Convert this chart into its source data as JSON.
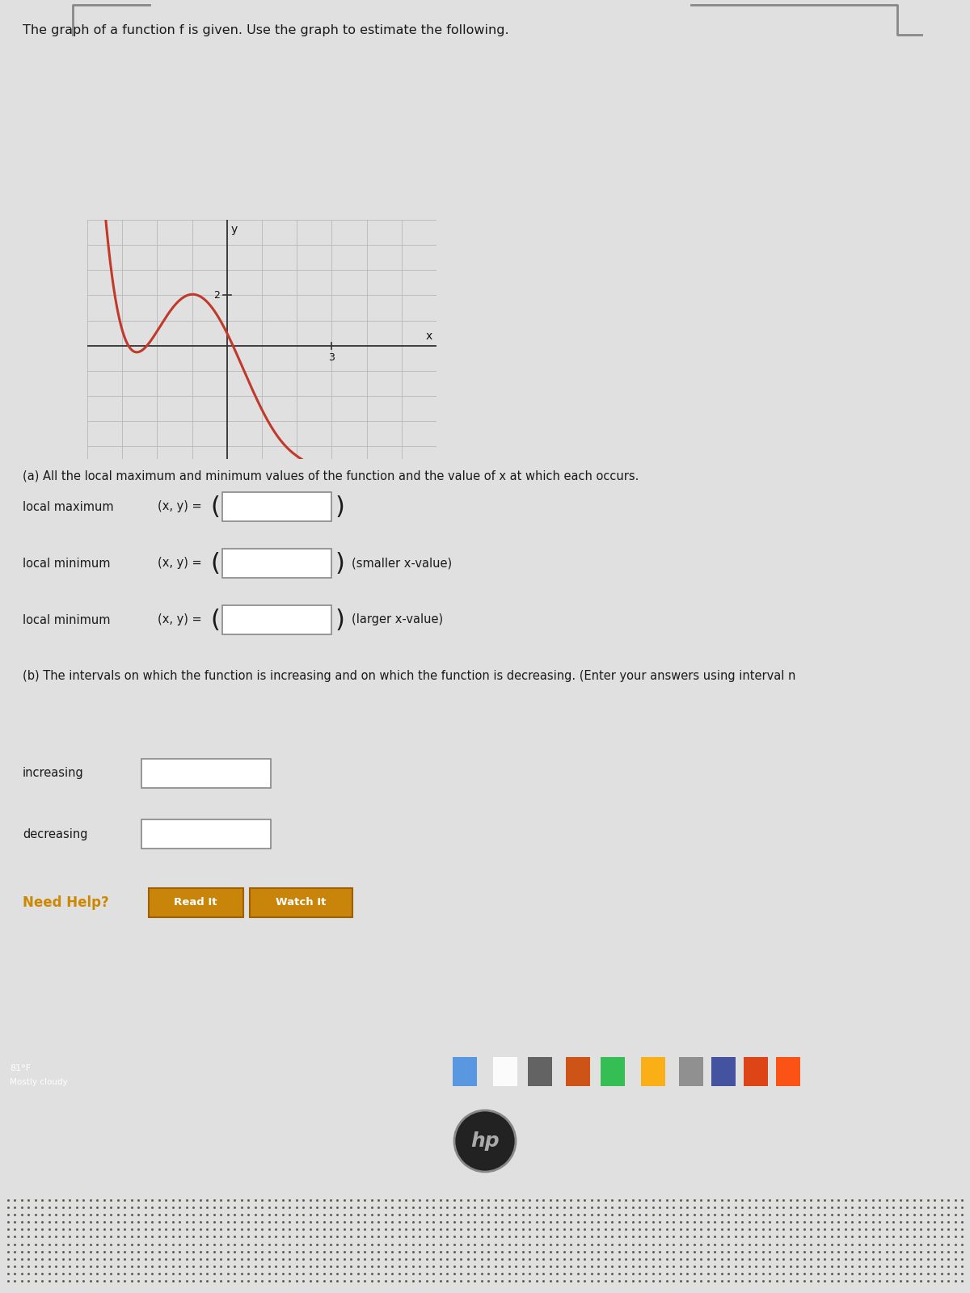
{
  "title": "The graph of a function f is given. Use the graph to estimate the following.",
  "graph_xlim": [
    -4,
    6
  ],
  "graph_ylim": [
    -4.5,
    5
  ],
  "x_tick_label": "3",
  "x_tick_pos": 3,
  "y_tick_label": "2",
  "y_tick_pos": 2,
  "curve_color": "#c0392b",
  "curve_linewidth": 2.2,
  "grid_color": "#b8b8b8",
  "axis_color": "#333333",
  "screen_bg": "#e0e0e0",
  "paper_color": "#e8e8e8",
  "label_a": "(a) All the local maximum and minimum values of the function and the value of x at which each occurs.",
  "local_max_label": "local maximum",
  "local_min_label1": "local minimum",
  "local_min_label2": "local minimum",
  "xy_eq": "(x, y) =",
  "smaller_x": "(smaller x-value)",
  "larger_x": "(larger x-value)",
  "label_b": "(b) The intervals on which the function is increasing and on which the function is decreasing. (Enter your answers using interval n",
  "increasing_label": "increasing",
  "decreasing_label": "decreasing",
  "need_help_color": "#cc8800",
  "need_help_text": "Need Help?",
  "read_it_text": "Read It",
  "watch_it_text": "Watch It",
  "taskbar_bg": "#4a1515",
  "weather_text": "81°F",
  "weather_text2": "Mostly cloudy",
  "hp_color": "#555555",
  "laptop_body": "#6a6a5a",
  "speaker_color": "#5a5a4a",
  "key_color": "#8a8a7a",
  "key_face": "#787868",
  "key_text": "#cccccc",
  "screen_bezel_top": "#222222",
  "screen_border_color": "#aaaaaa"
}
